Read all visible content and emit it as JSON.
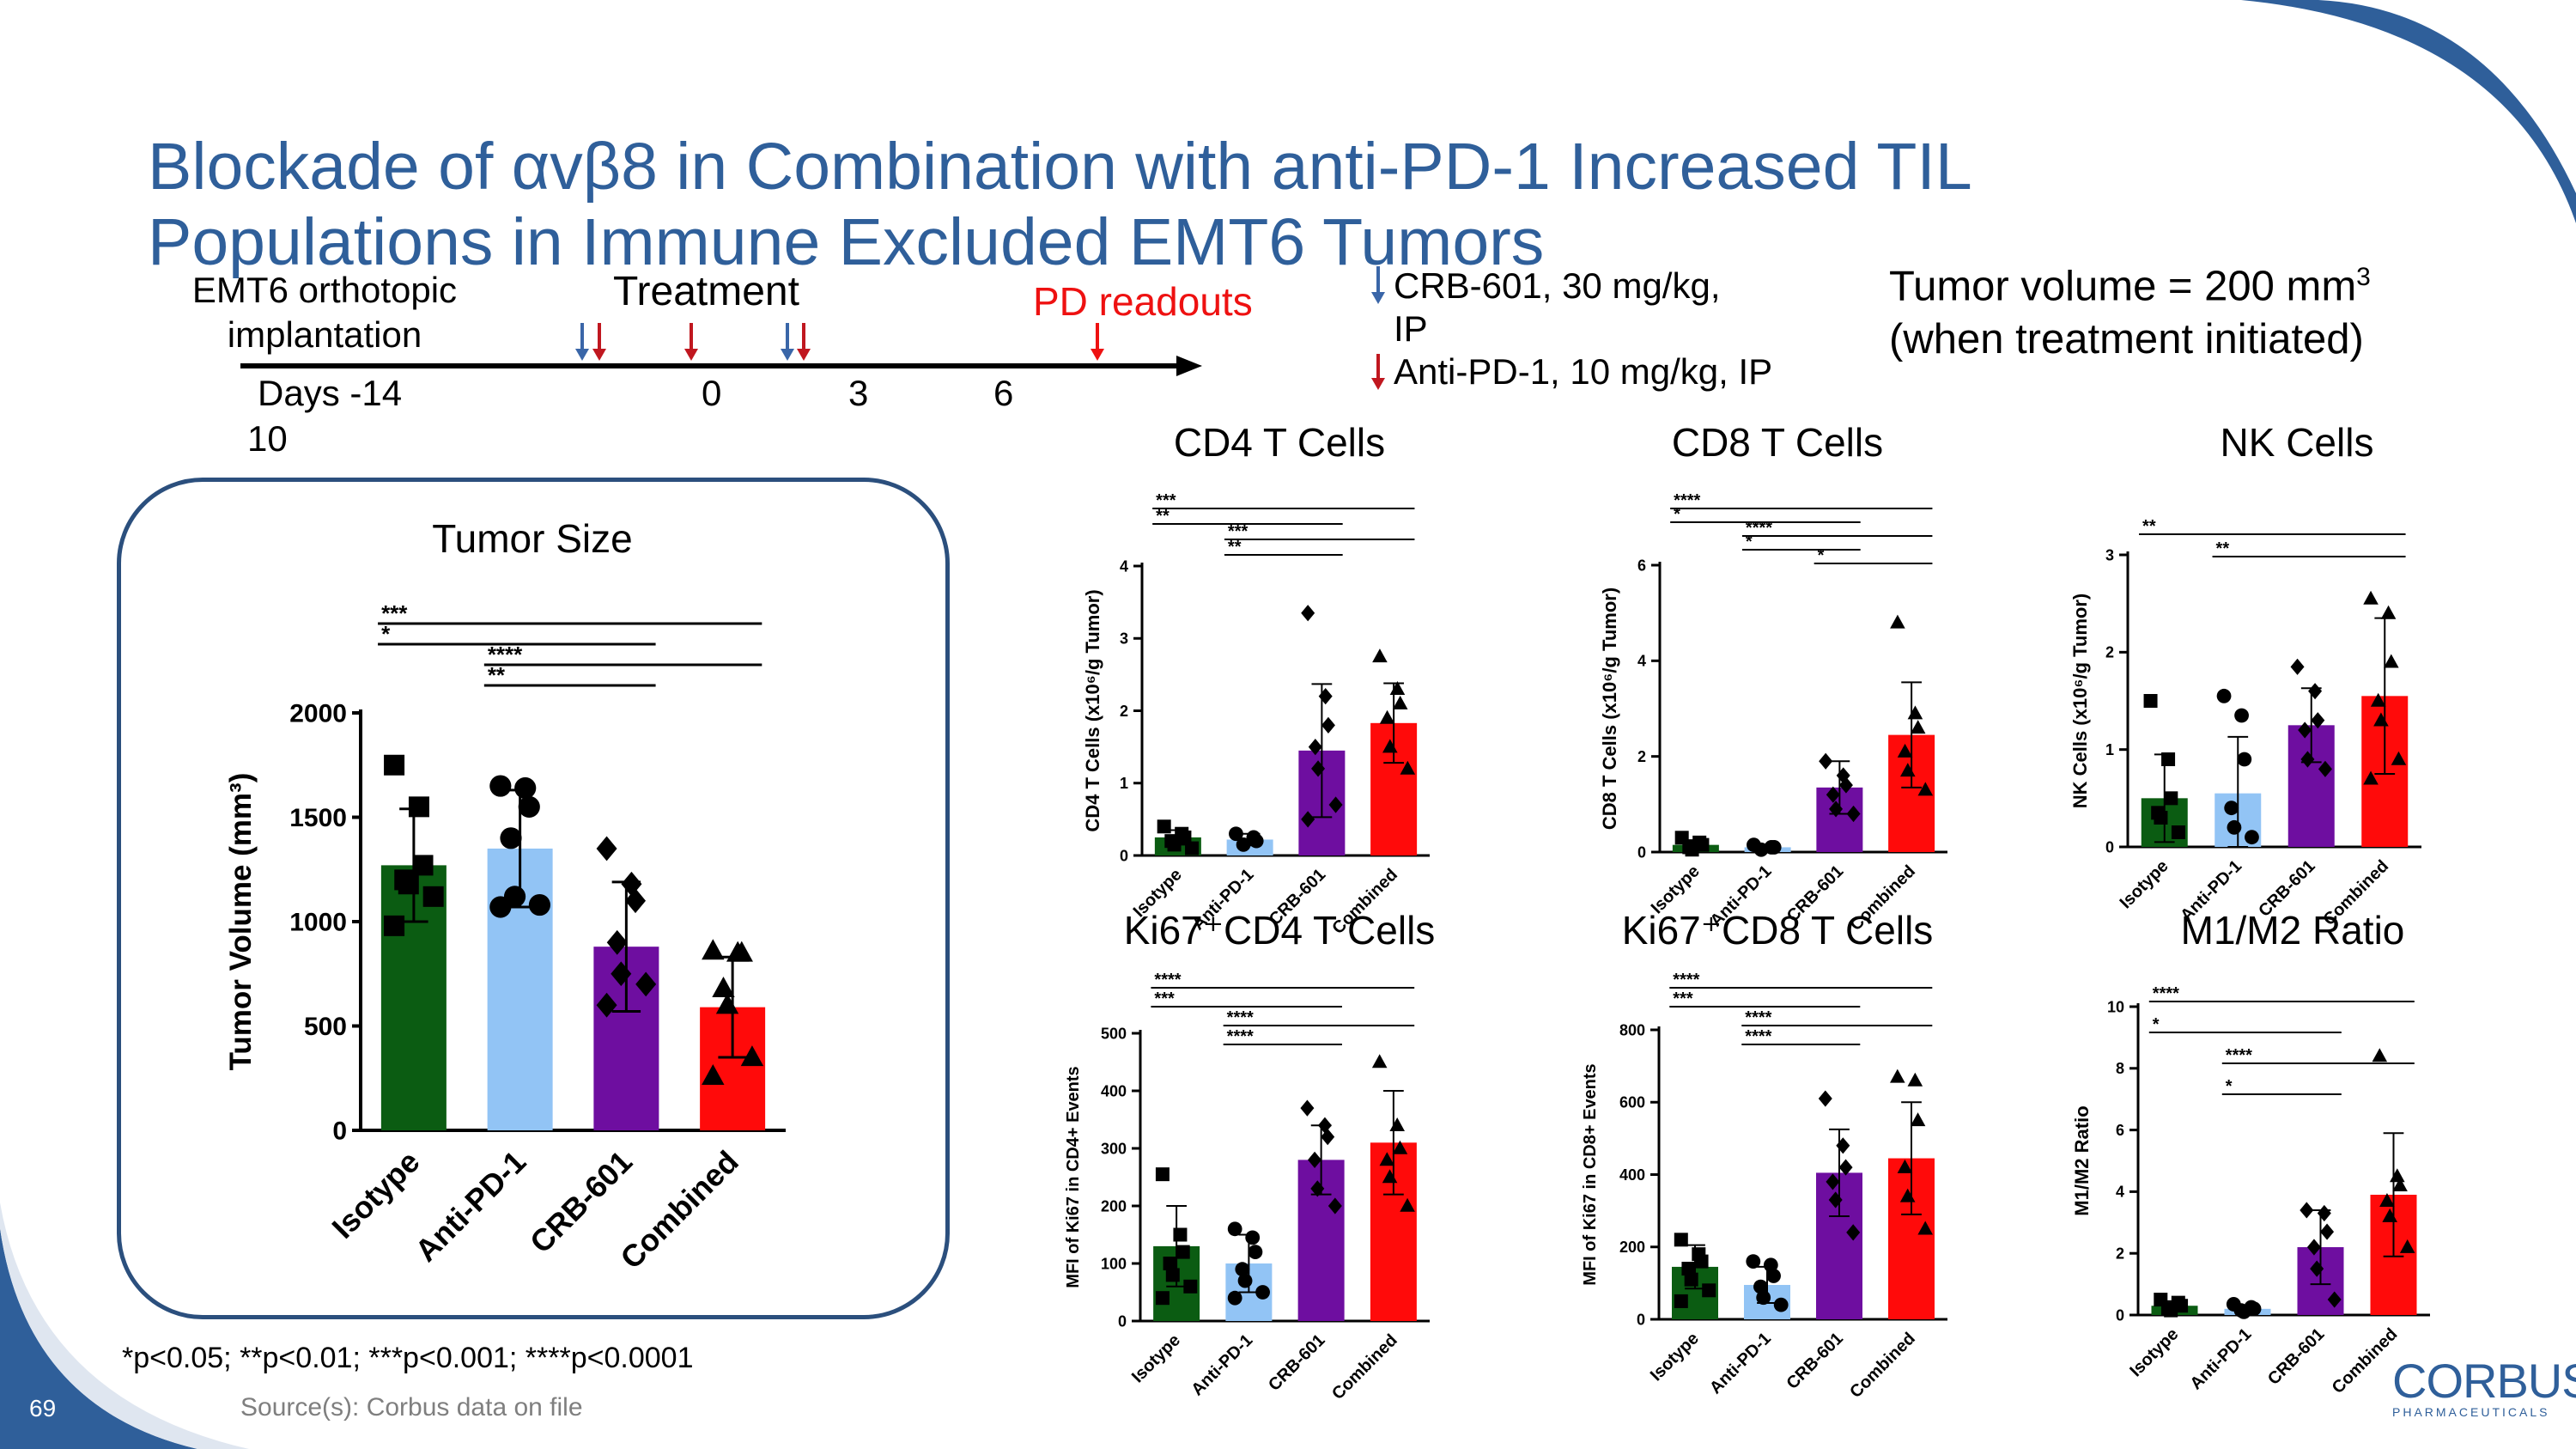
{
  "slide": {
    "title_line1": "Blockade of αvβ8 in Combination with anti-PD-1 Increased TIL",
    "title_line2": "Populations in Immune Excluded EMT6 Tumors",
    "page_number": "69",
    "footnote": "*p<0.05; **p<0.01; ***p<0.001; ****p<0.0001",
    "source": "Source(s): Corbus data on file",
    "logo_text": "CORBUS",
    "logo_sub": "PHARMACEUTICALS"
  },
  "timeline": {
    "implant_line1": "EMT6 orthotopic",
    "implant_line2": "implantation",
    "treatment_label": "Treatment",
    "readout_label": "PD readouts",
    "days_label": "Days -14",
    "day_10": "10",
    "day_0": "0",
    "day_3": "3",
    "day_6": "6"
  },
  "legend": {
    "crb_line1": "CRB-601, 30 mg/kg,",
    "crb_line2": "IP",
    "pd1_line": "Anti-PD-1, 10 mg/kg, IP",
    "tumor_vol_line1": "Tumor volume = 200 mm",
    "tumor_vol_sup": "3",
    "tumor_vol_line2": "(when treatment initiated)"
  },
  "colors": {
    "isotype": "#0b5c12",
    "anti_pd1": "#92c4f5",
    "crb601": "#6e0ea0",
    "combined": "#ff0a0a",
    "title_blue": "#2f5f9a",
    "crb_arrow": "#3a66a8",
    "pd1_arrow": "#c0171f"
  },
  "chart_data": [
    {
      "id": "tumor",
      "type": "bar",
      "title": "Tumor Size",
      "ylabel": "Tumor Volume  (mm³)",
      "categories": [
        "Isotype",
        "Anti-PD-1",
        "CRB-601",
        "Combined"
      ],
      "values": [
        1270,
        1350,
        880,
        590
      ],
      "errors": [
        270,
        280,
        310,
        240
      ],
      "ylim": [
        0,
        2000
      ],
      "yticks": [
        0,
        500,
        1000,
        1500,
        2000
      ],
      "points": [
        [
          1750,
          1550,
          1270,
          1200,
          1180,
          1120,
          980
        ],
        [
          1650,
          1640,
          1550,
          1400,
          1120,
          1080,
          1070
        ],
        [
          1350,
          1180,
          1100,
          900,
          750,
          700,
          600
        ],
        [
          860,
          850,
          850,
          680,
          600,
          350,
          260
        ]
      ],
      "sig": [
        {
          "text": "***",
          "from": 0,
          "to": 3
        },
        {
          "text": "*",
          "from": 0,
          "to": 2
        },
        {
          "text": "****",
          "from": 1,
          "to": 3
        },
        {
          "text": "**",
          "from": 1,
          "to": 2
        }
      ]
    },
    {
      "id": "cd4",
      "type": "bar",
      "title": "CD4 T Cells",
      "ylabel": "CD4 T Cells (x10⁶/g Tumor)",
      "categories": [
        "Isotype",
        "Anti-PD-1",
        "CRB-601",
        "Combined"
      ],
      "values": [
        0.25,
        0.22,
        1.45,
        1.83
      ],
      "errors": [
        0.1,
        0.08,
        0.92,
        0.55
      ],
      "ylim": [
        0,
        4
      ],
      "yticks": [
        0,
        1,
        2,
        3,
        4
      ],
      "points": [
        [
          0.4,
          0.3,
          0.25,
          0.2,
          0.15,
          0.1
        ],
        [
          0.3,
          0.25,
          0.2,
          0.15
        ],
        [
          3.35,
          2.2,
          1.8,
          1.5,
          1.2,
          0.7,
          0.5
        ],
        [
          2.75,
          2.3,
          2.1,
          1.9,
          1.5,
          1.2
        ]
      ],
      "sig": [
        {
          "text": "***",
          "from": 0,
          "to": 3
        },
        {
          "text": "**",
          "from": 0,
          "to": 2
        },
        {
          "text": "***",
          "from": 1,
          "to": 3
        },
        {
          "text": "**",
          "from": 1,
          "to": 2
        }
      ]
    },
    {
      "id": "cd8",
      "type": "bar",
      "title": "CD8 T Cells",
      "ylabel": "CD8 T Cells (x10⁶/g Tumor)",
      "categories": [
        "Isotype",
        "Anti-PD-1",
        "CRB-601",
        "Combined"
      ],
      "values": [
        0.15,
        0.1,
        1.35,
        2.45
      ],
      "errors": [
        0.1,
        0.05,
        0.55,
        1.1
      ],
      "ylim": [
        0,
        6
      ],
      "yticks": [
        0,
        2,
        4,
        6
      ],
      "points": [
        [
          0.3,
          0.2,
          0.15,
          0.1,
          0.05
        ],
        [
          0.15,
          0.1,
          0.1,
          0.05
        ],
        [
          1.9,
          1.6,
          1.4,
          1.2,
          0.9,
          0.8
        ],
        [
          4.8,
          2.9,
          2.6,
          2.1,
          1.7,
          1.3
        ]
      ],
      "sig": [
        {
          "text": "****",
          "from": 0,
          "to": 3
        },
        {
          "text": "*",
          "from": 0,
          "to": 2
        },
        {
          "text": "****",
          "from": 1,
          "to": 3
        },
        {
          "text": "*",
          "from": 1,
          "to": 2
        },
        {
          "text": "*",
          "from": 2,
          "to": 3
        }
      ]
    },
    {
      "id": "nk",
      "type": "bar",
      "title": "NK Cells",
      "ylabel": "NK Cells (x10⁶/g Tumor)",
      "categories": [
        "Isotype",
        "Anti-PD-1",
        "CRB-601",
        "Combined"
      ],
      "values": [
        0.5,
        0.55,
        1.25,
        1.55
      ],
      "errors": [
        0.45,
        0.58,
        0.38,
        0.8
      ],
      "ylim": [
        0,
        3
      ],
      "yticks": [
        0,
        1,
        2,
        3
      ],
      "points": [
        [
          1.5,
          0.9,
          0.5,
          0.35,
          0.3,
          0.15
        ],
        [
          1.55,
          1.35,
          0.9,
          0.4,
          0.2,
          0.1
        ],
        [
          1.85,
          1.6,
          1.3,
          1.2,
          0.9,
          0.8
        ],
        [
          2.55,
          2.4,
          1.9,
          1.5,
          1.3,
          0.9,
          0.7
        ]
      ],
      "sig": [
        {
          "text": "**",
          "from": 0,
          "to": 3
        },
        {
          "text": "**",
          "from": 1,
          "to": 3
        }
      ]
    },
    {
      "id": "ki67cd4",
      "type": "bar",
      "title": "Ki67⁺CD4 T Cells",
      "ylabel": "MFI of Ki67 in CD4+ Events",
      "categories": [
        "Isotype",
        "Anti-PD-1",
        "CRB-601",
        "Combined"
      ],
      "values": [
        130,
        100,
        280,
        310
      ],
      "errors": [
        70,
        50,
        60,
        90
      ],
      "ylim": [
        0,
        500
      ],
      "yticks": [
        0,
        100,
        200,
        300,
        400,
        500
      ],
      "points": [
        [
          255,
          150,
          120,
          100,
          80,
          60,
          40
        ],
        [
          160,
          145,
          120,
          90,
          70,
          50,
          40
        ],
        [
          370,
          340,
          320,
          280,
          230,
          200
        ],
        [
          450,
          340,
          300,
          280,
          250,
          200
        ]
      ],
      "sig": [
        {
          "text": "****",
          "from": 0,
          "to": 3
        },
        {
          "text": "***",
          "from": 0,
          "to": 2
        },
        {
          "text": "****",
          "from": 1,
          "to": 3
        },
        {
          "text": "****",
          "from": 1,
          "to": 2
        }
      ]
    },
    {
      "id": "ki67cd8",
      "type": "bar",
      "title": "Ki67⁺CD8 T Cells",
      "ylabel": "MFI of Ki67 in CD8+ Events",
      "categories": [
        "Isotype",
        "Anti-PD-1",
        "CRB-601",
        "Combined"
      ],
      "values": [
        145,
        95,
        405,
        445
      ],
      "errors": [
        60,
        50,
        120,
        155
      ],
      "ylim": [
        0,
        800
      ],
      "yticks": [
        0,
        200,
        400,
        600,
        800
      ],
      "points": [
        [
          220,
          180,
          160,
          140,
          110,
          80,
          50
        ],
        [
          160,
          150,
          120,
          90,
          60,
          40
        ],
        [
          610,
          480,
          420,
          380,
          330,
          240
        ],
        [
          670,
          660,
          550,
          420,
          340,
          250
        ]
      ],
      "sig": [
        {
          "text": "****",
          "from": 0,
          "to": 3
        },
        {
          "text": "***",
          "from": 0,
          "to": 2
        },
        {
          "text": "****",
          "from": 1,
          "to": 3
        },
        {
          "text": "****",
          "from": 1,
          "to": 2
        }
      ]
    },
    {
      "id": "m1m2",
      "type": "bar",
      "title": "M1/M2 Ratio",
      "ylabel": "M1/M2 Ratio",
      "categories": [
        "Isotype",
        "Anti-PD-1",
        "CRB-601",
        "Combined"
      ],
      "values": [
        0.3,
        0.2,
        2.2,
        3.9
      ],
      "errors": [
        0.15,
        0.1,
        1.2,
        2.0
      ],
      "ylim": [
        0,
        10
      ],
      "yticks": [
        0,
        2,
        4,
        6,
        8,
        10
      ],
      "points": [
        [
          0.5,
          0.4,
          0.3,
          0.2,
          0.15
        ],
        [
          0.35,
          0.25,
          0.2,
          0.15,
          0.1
        ],
        [
          3.4,
          3.3,
          2.7,
          2.2,
          1.5,
          0.5
        ],
        [
          8.4,
          4.5,
          4.2,
          3.7,
          3.2,
          2.2
        ]
      ],
      "sig": [
        {
          "text": "****",
          "from": 0,
          "to": 3
        },
        {
          "text": "*",
          "from": 0,
          "to": 2
        },
        {
          "text": "****",
          "from": 1,
          "to": 3
        },
        {
          "text": "*",
          "from": 1,
          "to": 2
        }
      ]
    }
  ]
}
